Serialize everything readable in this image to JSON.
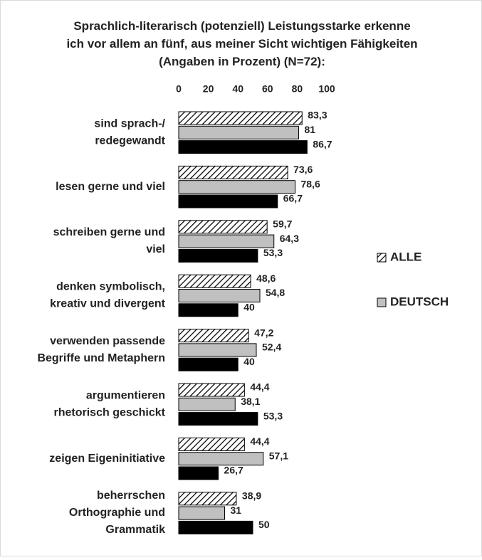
{
  "chart_data": {
    "type": "bar",
    "orientation": "horizontal",
    "title": "Sprachlich-literarisch (potenziell) Leistungsstarke erkenne\nich vor allem an fünf, aus meiner Sicht wichtigen Fähigkeiten\n(Angaben in Prozent) (N=72):",
    "categories": [
      "sind sprach-/\nredegewandt",
      "lesen gerne und viel",
      "schreiben gerne und\nviel",
      "denken symbolisch,\nkreativ und divergent",
      "verwenden passende\nBegriffe und Metaphern",
      "argumentieren\nrhetorisch geschickt",
      "zeigen Eigeninitiative",
      "beherrschen\nOrthographie und\nGrammatik"
    ],
    "series": [
      {
        "name": "ALLE",
        "color": "hatch",
        "values": [
          83.3,
          73.6,
          59.7,
          48.6,
          47.2,
          44.4,
          44.4,
          38.9
        ],
        "value_labels": [
          "83,3",
          "73,6",
          "59,7",
          "48,6",
          "47,2",
          "44,4",
          "44,4",
          "38,9"
        ]
      },
      {
        "name": "DEUTSCH",
        "color": "#c0c0c0",
        "values": [
          81,
          78.6,
          64.3,
          54.8,
          52.4,
          38.1,
          57.1,
          31
        ],
        "value_labels": [
          "81",
          "78,6",
          "64,3",
          "54,8",
          "52,4",
          "38,1",
          "57,1",
          "31"
        ]
      },
      {
        "color": "#000000",
        "values": [
          86.7,
          66.7,
          53.3,
          40,
          40,
          53.3,
          26.7,
          50
        ],
        "value_labels": [
          "86,7",
          "66,7",
          "53,3",
          "40",
          "40",
          "53,3",
          "26,7",
          "50"
        ]
      }
    ],
    "xlim": [
      0,
      100
    ],
    "xticks": [
      0,
      20,
      40,
      60,
      80,
      100
    ],
    "legend": "right"
  }
}
